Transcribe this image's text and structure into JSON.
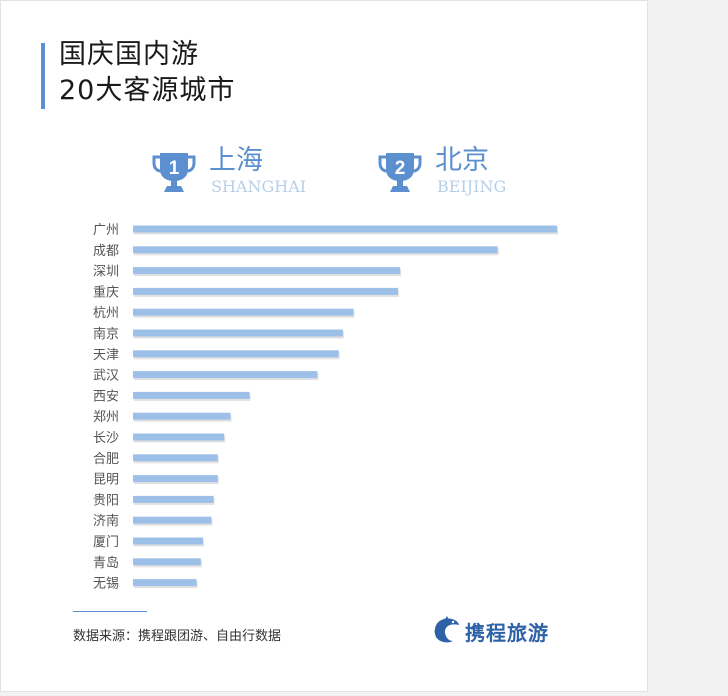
{
  "title": {
    "line1": "国庆国内游",
    "line2": "20大客源城市"
  },
  "ranks": [
    {
      "number": "1",
      "city_cn": "上海",
      "city_en": "SHANGHAI"
    },
    {
      "number": "2",
      "city_cn": "北京",
      "city_en": "BEIJING"
    }
  ],
  "colors": {
    "accent": "#5b8fcf",
    "bar": "#9dc0e8",
    "english_label": "#b7cfe9",
    "logo": "#2e62a8"
  },
  "chart_data": {
    "type": "bar",
    "orientation": "horizontal",
    "title": "国庆国内游 20大客源城市",
    "categories": [
      "广州",
      "成都",
      "深圳",
      "重庆",
      "杭州",
      "南京",
      "天津",
      "武汉",
      "西安",
      "郑州",
      "长沙",
      "合肥",
      "昆明",
      "贵阳",
      "济南",
      "厦门",
      "青岛",
      "无锡"
    ],
    "values": [
      100,
      86,
      63,
      62.5,
      52,
      49.5,
      48.5,
      43.5,
      27.5,
      23,
      21.5,
      20,
      20,
      19,
      18.5,
      16.5,
      16,
      15
    ],
    "xlabel": "",
    "ylabel": "",
    "xlim": [
      0,
      100
    ],
    "value_axis_shown": false,
    "grid": false,
    "legend": "none"
  },
  "source": "数据来源：携程跟团游、自由行数据",
  "logo": {
    "text": "携程旅游",
    "icon": "dolphin-icon"
  }
}
